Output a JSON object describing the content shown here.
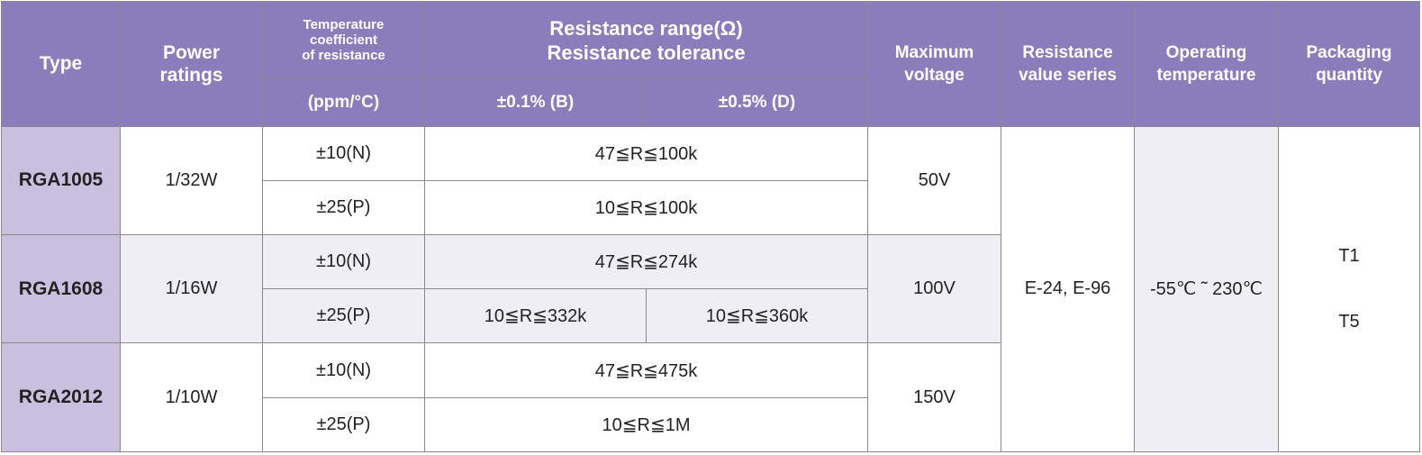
{
  "header": {
    "type": "Type",
    "power": "Power\nratings",
    "tcr": "Temperature\ncoefficient\nof resistance",
    "tcr_unit": "(ppm/°C)",
    "range": "Resistance range(Ω)\nResistance tolerance",
    "tol_b": "±0.1% (B)",
    "tol_d": "±0.5% (D)",
    "max_voltage": "Maximum\nvoltage",
    "series": "Resistance\nvalue series",
    "op_temp": "Operating\ntemperature",
    "packaging": "Packaging\nquantity"
  },
  "rows": [
    {
      "type": "RGA1005",
      "power": "1/32W",
      "voltage": "50V",
      "sub": [
        {
          "tcr": "±10(N)",
          "range": "47≦R≦100k"
        },
        {
          "tcr": "±25(P)",
          "range": "10≦R≦100k"
        }
      ]
    },
    {
      "type": "RGA1608",
      "power": "1/16W",
      "voltage": "100V",
      "sub": [
        {
          "tcr": "±10(N)",
          "range": "47≦R≦274k"
        },
        {
          "tcr": "±25(P)",
          "range_b": "10≦R≦332k",
          "range_d": "10≦R≦360k"
        }
      ]
    },
    {
      "type": "RGA2012",
      "power": "1/10W",
      "voltage": "150V",
      "sub": [
        {
          "tcr": "±10(N)",
          "range": "47≦R≦475k"
        },
        {
          "tcr": "±25(P)",
          "range": "10≦R≦1M"
        }
      ]
    }
  ],
  "shared": {
    "series": "E-24, E-96",
    "op_temp": "-55℃ ˜ 230℃",
    "packaging": [
      "T1",
      "T5"
    ]
  }
}
